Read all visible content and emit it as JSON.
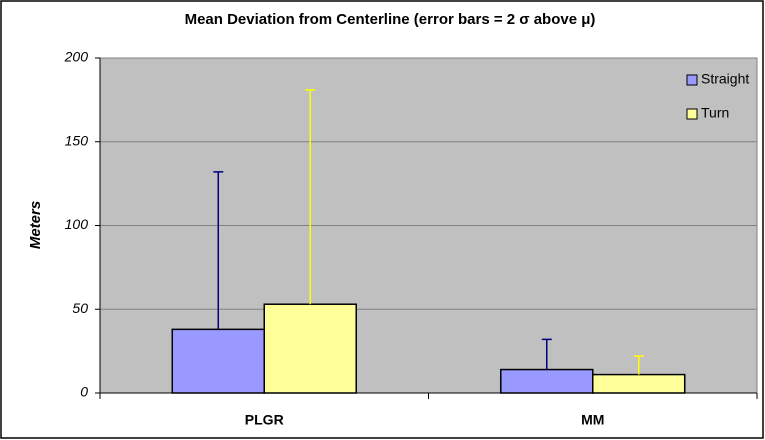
{
  "chart_data": {
    "type": "bar",
    "title": "Mean Deviation from Centerline (error bars = 2 σ above μ)",
    "ylabel": "Meters",
    "categories": [
      "PLGR",
      "MM"
    ],
    "series": [
      {
        "name": "Straight",
        "color": "#9999ff",
        "error_color": "#000080",
        "values": [
          38,
          14
        ],
        "errors": [
          94,
          18
        ]
      },
      {
        "name": "Turn",
        "color": "#ffff99",
        "error_color": "#ffff00",
        "values": [
          53,
          11
        ],
        "errors": [
          128,
          11
        ]
      }
    ],
    "ylim": [
      0,
      200
    ],
    "yticks": [
      0,
      50,
      100,
      150,
      200
    ],
    "grid": true,
    "legend": "upper right",
    "plot_background": "#c0c0c0"
  }
}
